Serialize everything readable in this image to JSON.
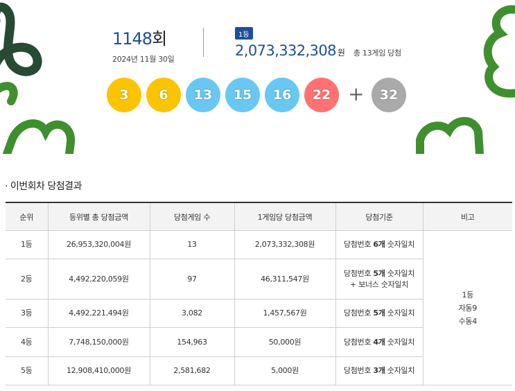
{
  "draw": {
    "round_number": "1148",
    "round_suffix": "회",
    "date": "2024년 11월 30일"
  },
  "first_prize": {
    "rank_tag": "1등",
    "amount": "2,073,332,308",
    "currency": "원",
    "winners_text": "총 13게임 당첨"
  },
  "numbers": {
    "main": [
      {
        "value": "3",
        "color": "#fbc400"
      },
      {
        "value": "6",
        "color": "#fbc400"
      },
      {
        "value": "13",
        "color": "#69c8f2"
      },
      {
        "value": "15",
        "color": "#69c8f2"
      },
      {
        "value": "16",
        "color": "#69c8f2"
      },
      {
        "value": "22",
        "color": "#ff7272"
      }
    ],
    "plus": "+",
    "bonus": {
      "value": "32",
      "color": "#aaaaaa"
    }
  },
  "section_title": "· 이번회차 당첨결과",
  "table": {
    "headers": [
      "순위",
      "등위별 총 당첨금액",
      "당첨게임 수",
      "1게임당 당첨금액",
      "당첨기준",
      "비고"
    ],
    "rows": [
      {
        "rank": "1등",
        "total": "26,953,320,004원",
        "games": "13",
        "per_game": "2,073,332,308원",
        "criteria_pre": "당첨번호 ",
        "criteria_bold": "6개",
        "criteria_post": " 숫자일치",
        "criteria_extra": ""
      },
      {
        "rank": "2등",
        "total": "4,492,220,059원",
        "games": "97",
        "per_game": "46,311,547원",
        "criteria_pre": "당첨번호 ",
        "criteria_bold": "5개",
        "criteria_post": " 숫자일치",
        "criteria_extra": "+ 보너스 숫자일치"
      },
      {
        "rank": "3등",
        "total": "4,492,221,494원",
        "games": "3,082",
        "per_game": "1,457,567원",
        "criteria_pre": "당첨번호 ",
        "criteria_bold": "5개",
        "criteria_post": " 숫자일치",
        "criteria_extra": ""
      },
      {
        "rank": "4등",
        "total": "7,748,150,000원",
        "games": "154,963",
        "per_game": "50,000원",
        "criteria_pre": "당첨번호 ",
        "criteria_bold": "4개",
        "criteria_post": " 숫자일치",
        "criteria_extra": ""
      },
      {
        "rank": "5등",
        "total": "12,908,410,000원",
        "games": "2,581,682",
        "per_game": "5,000원",
        "criteria_pre": "당첨번호 ",
        "criteria_bold": "3개",
        "criteria_post": " 숫자일치",
        "criteria_extra": ""
      }
    ],
    "note_lines": [
      "1등",
      "자동9",
      "수동4"
    ]
  },
  "colors": {
    "accent_blue": "#1b4f9c",
    "decoration_green": "#3f8f2f",
    "decoration_dark": "#264a34"
  }
}
